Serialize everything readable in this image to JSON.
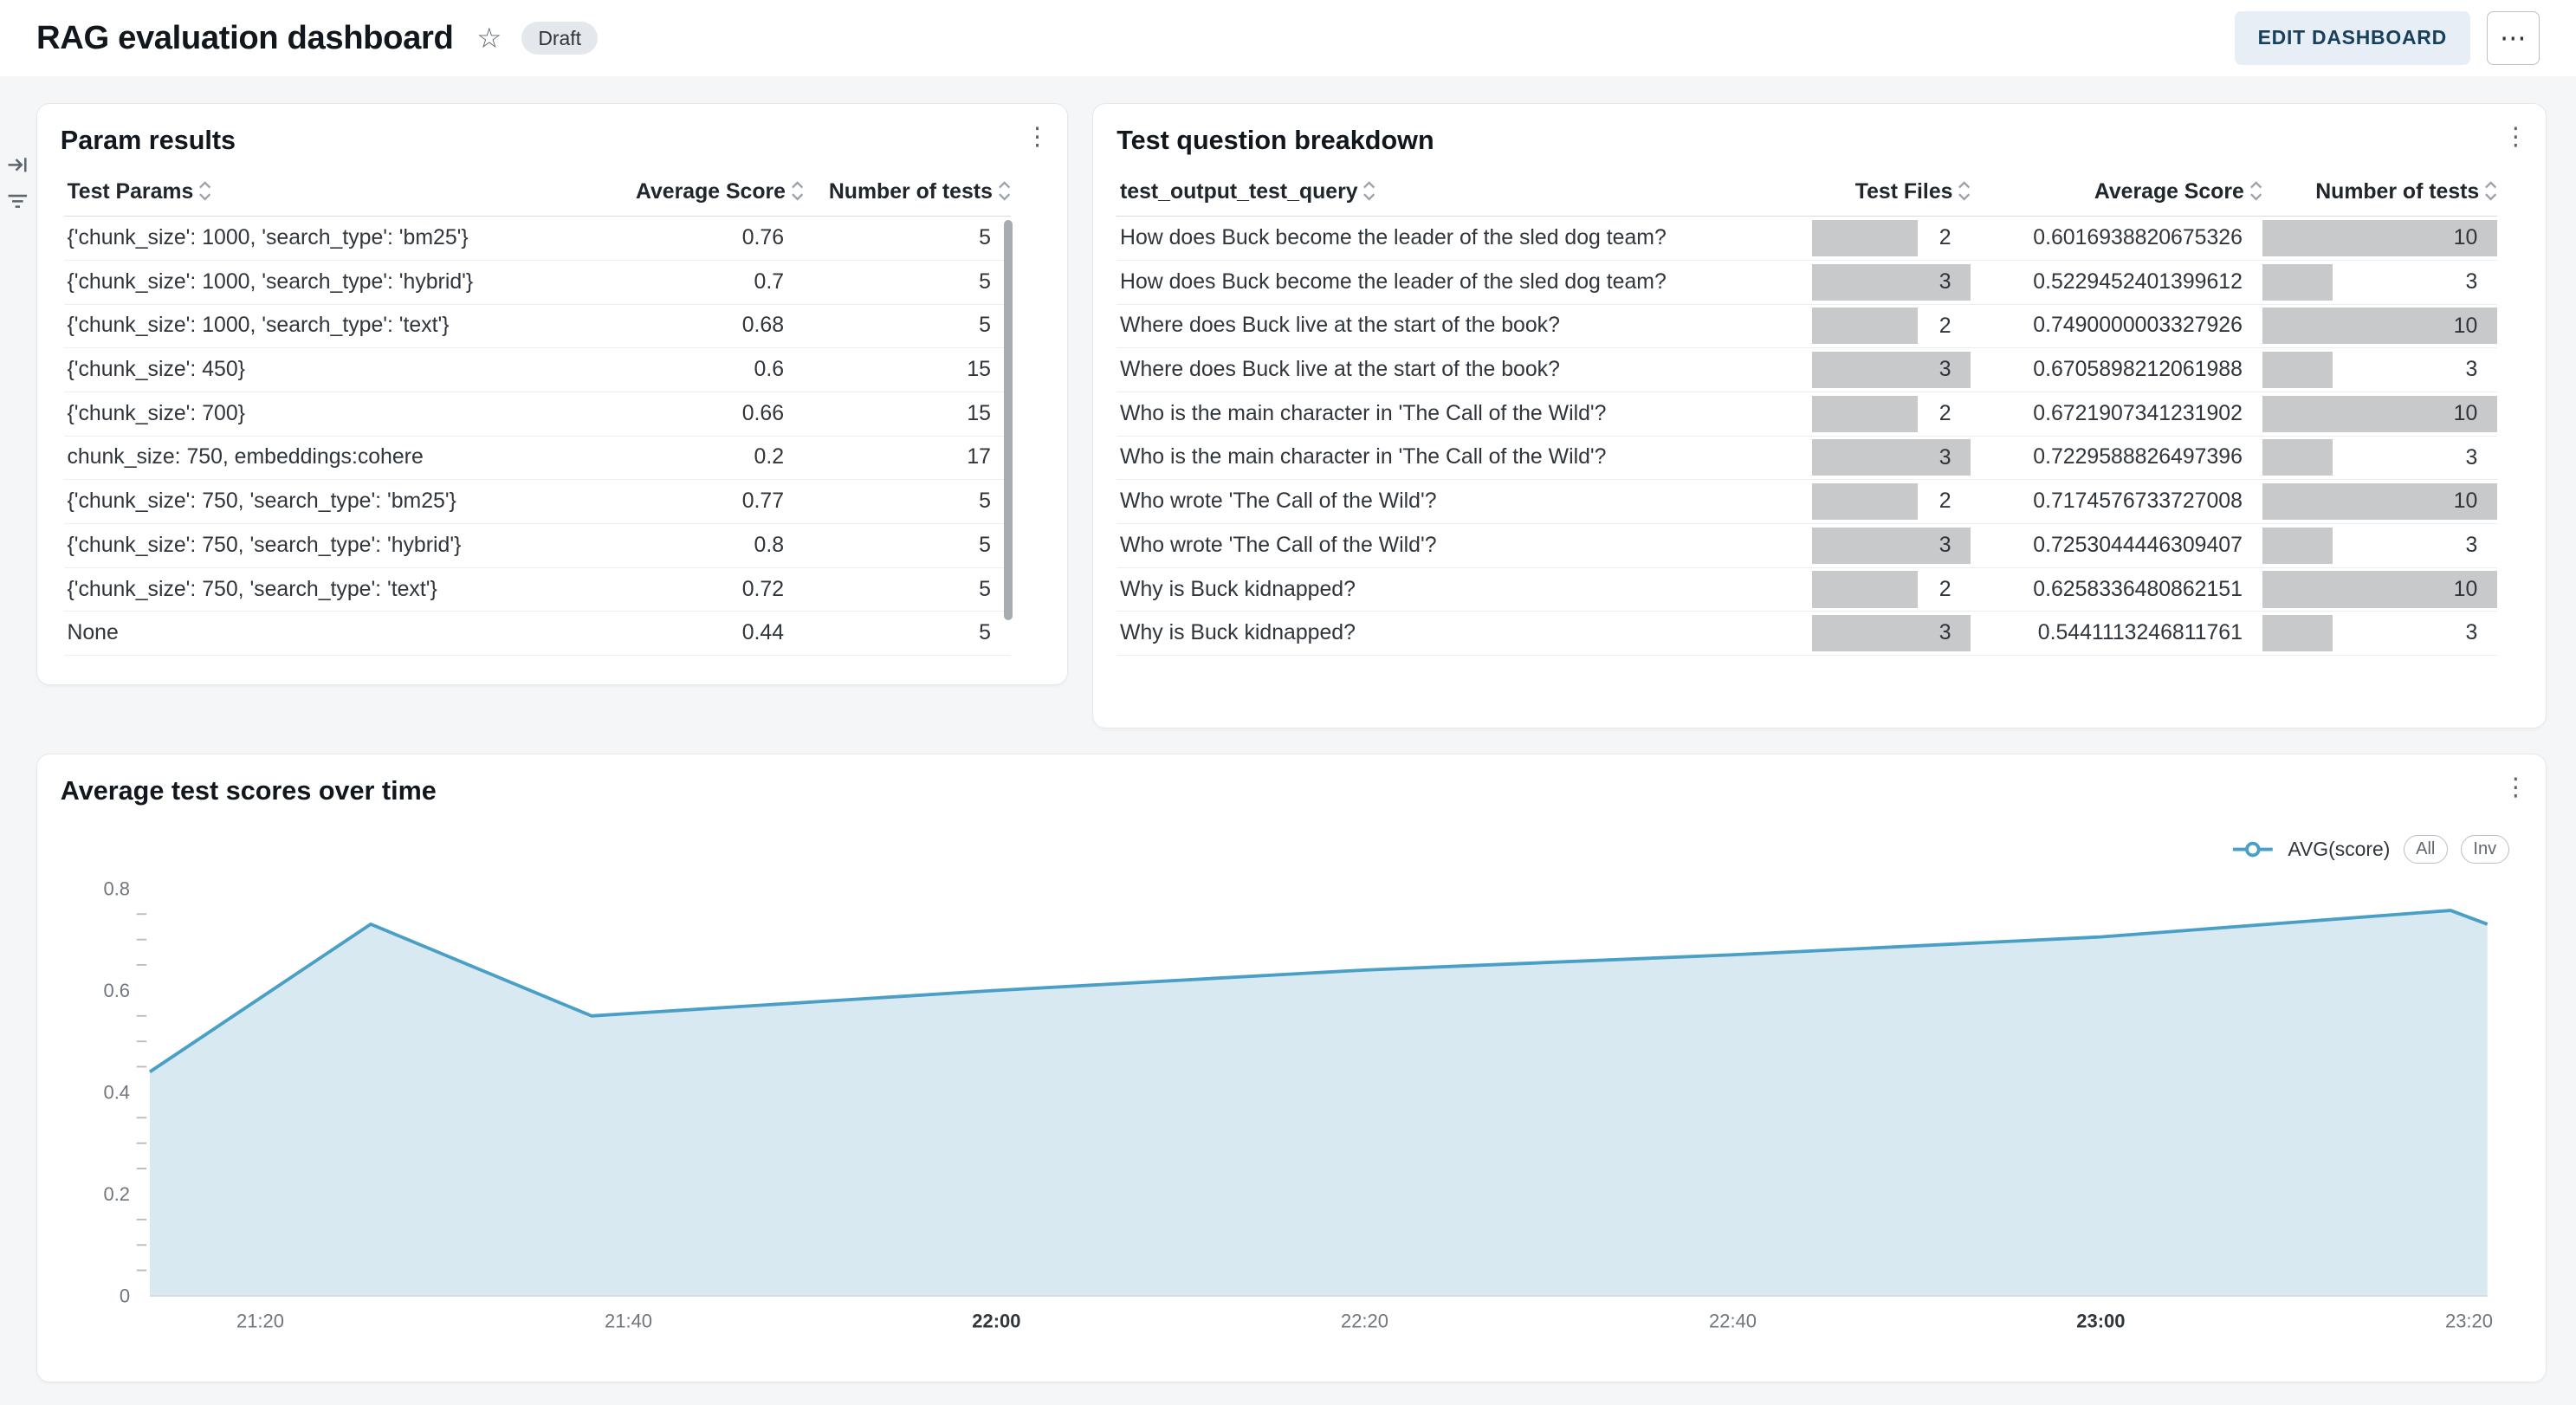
{
  "header": {
    "title": "RAG evaluation dashboard",
    "status_badge": "Draft",
    "edit_button": "EDIT DASHBOARD"
  },
  "param_results": {
    "title": "Param results",
    "columns": [
      "Test Params",
      "Average Score",
      "Number of tests"
    ],
    "rows": [
      {
        "params": "{'chunk_size': 1000, 'search_type': 'bm25'}",
        "avg_score": "0.76",
        "num_tests": "5"
      },
      {
        "params": "{'chunk_size': 1000, 'search_type': 'hybrid'}",
        "avg_score": "0.7",
        "num_tests": "5"
      },
      {
        "params": "{'chunk_size': 1000, 'search_type': 'text'}",
        "avg_score": "0.68",
        "num_tests": "5"
      },
      {
        "params": "{'chunk_size': 450}",
        "avg_score": "0.6",
        "num_tests": "15"
      },
      {
        "params": "{'chunk_size': 700}",
        "avg_score": "0.66",
        "num_tests": "15"
      },
      {
        "params": "chunk_size: 750, embeddings:cohere",
        "avg_score": "0.2",
        "num_tests": "17"
      },
      {
        "params": "{'chunk_size': 750, 'search_type': 'bm25'}",
        "avg_score": "0.77",
        "num_tests": "5"
      },
      {
        "params": "{'chunk_size': 750, 'search_type': 'hybrid'}",
        "avg_score": "0.8",
        "num_tests": "5"
      },
      {
        "params": "{'chunk_size': 750, 'search_type': 'text'}",
        "avg_score": "0.72",
        "num_tests": "5"
      },
      {
        "params": "None",
        "avg_score": "0.44",
        "num_tests": "5"
      }
    ]
  },
  "question_breakdown": {
    "title": "Test question breakdown",
    "columns": [
      "test_output_test_query",
      "Test Files",
      "Average Score",
      "Number of tests"
    ],
    "bar_max": {
      "test_files": 3,
      "num_tests": 10
    },
    "rows": [
      {
        "query": "How does Buck become the leader of the sled dog team?",
        "test_files": 2,
        "avg_score": "0.6016938820675326",
        "num_tests": 10
      },
      {
        "query": "How does Buck become the leader of the sled dog team?",
        "test_files": 3,
        "avg_score": "0.5229452401399612",
        "num_tests": 3
      },
      {
        "query": "Where does Buck live at the start of the book?",
        "test_files": 2,
        "avg_score": "0.7490000003327926",
        "num_tests": 10
      },
      {
        "query": "Where does Buck live at the start of the book?",
        "test_files": 3,
        "avg_score": "0.6705898212061988",
        "num_tests": 3
      },
      {
        "query": "Who is the main character in 'The Call of the Wild'?",
        "test_files": 2,
        "avg_score": "0.6721907341231902",
        "num_tests": 10
      },
      {
        "query": "Who is the main character in 'The Call of the Wild'?",
        "test_files": 3,
        "avg_score": "0.7229588826497396",
        "num_tests": 3
      },
      {
        "query": "Who wrote 'The Call of the Wild'?",
        "test_files": 2,
        "avg_score": "0.7174576733727008",
        "num_tests": 10
      },
      {
        "query": "Who wrote 'The Call of the Wild'?",
        "test_files": 3,
        "avg_score": "0.7253044446309407",
        "num_tests": 3
      },
      {
        "query": "Why is Buck kidnapped?",
        "test_files": 2,
        "avg_score": "0.6258336480862151",
        "num_tests": 10
      },
      {
        "query": "Why is Buck kidnapped?",
        "test_files": 3,
        "avg_score": "0.5441113246811761",
        "num_tests": 3
      }
    ]
  },
  "scores_chart": {
    "title": "Average test scores over time",
    "legend_series": "AVG(score)",
    "legend_all": "All",
    "legend_inv": "Inv"
  },
  "colors": {
    "line": "#4a9fc6",
    "area_fill": "#d8e9f2",
    "data_bar": "#c7c9cb",
    "accent_button_bg": "#e7eef5",
    "accent_button_text": "#17405c"
  },
  "chart_data": {
    "type": "area",
    "title": "Average test scores over time",
    "series": [
      {
        "name": "AVG(score)",
        "points": [
          {
            "time": "21:14",
            "value": 0.44
          },
          {
            "time": "21:26",
            "value": 0.73
          },
          {
            "time": "21:38",
            "value": 0.55
          },
          {
            "time": "22:00",
            "value": 0.6
          },
          {
            "time": "22:20",
            "value": 0.64
          },
          {
            "time": "22:40",
            "value": 0.67
          },
          {
            "time": "23:00",
            "value": 0.705
          },
          {
            "time": "23:19",
            "value": 0.757
          },
          {
            "time": "23:21",
            "value": 0.73
          }
        ]
      }
    ],
    "x_ticks": [
      "21:20",
      "21:40",
      "22:00",
      "22:20",
      "22:40",
      "23:00",
      "23:20"
    ],
    "x_ticks_bold": [
      "22:00",
      "23:00"
    ],
    "y_ticks": [
      0,
      0.2,
      0.4,
      0.6,
      0.8
    ],
    "y_minor_step": 0.05,
    "ylim": [
      0,
      0.8
    ],
    "xlabel": "",
    "ylabel": "",
    "grid": false,
    "legend_position": "top-right",
    "line_color": "#4a9fc6",
    "fill_color": "#d8e9f2"
  }
}
